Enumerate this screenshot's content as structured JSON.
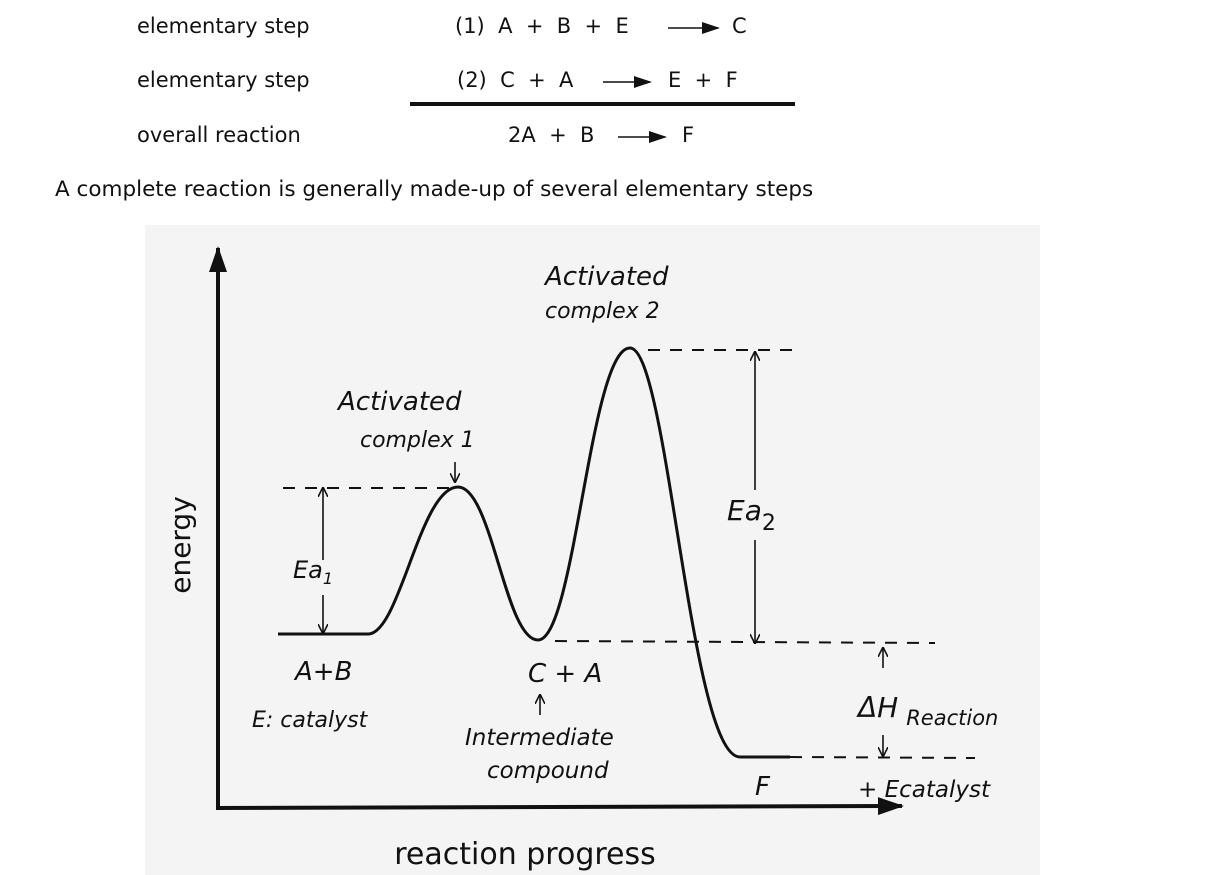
{
  "reactions": [
    {
      "label": "elementary step",
      "reactants": "(1)  A  +  B  +  E",
      "products": "C"
    },
    {
      "label": "elementary step",
      "reactants": "(2)  C  +  A",
      "products": "E  +  F"
    },
    {
      "label": "overall reaction",
      "reactants": "2A  +  B",
      "products": "F"
    }
  ],
  "caption": "A complete reaction is generally made-up of several elementary steps",
  "diagram": {
    "y_axis_label": "energy",
    "x_axis_label": "reaction progress",
    "complex_2": [
      "Activated",
      "complex 2"
    ],
    "complex_1": [
      "Activated",
      "complex 1"
    ],
    "ea_1": "Ea",
    "ea_1_sub": "1",
    "ea_2": "Ea",
    "ea_2_sub": "2",
    "reactants": "A+B",
    "catalyst": "E: catalyst",
    "intermediate": "C + A",
    "intermediate_note": [
      "Intermediate",
      "compound"
    ],
    "product": "F",
    "delta_h": "ΔH",
    "delta_h_sub": "Reaction",
    "product_note": "+ Ecatalyst"
  }
}
